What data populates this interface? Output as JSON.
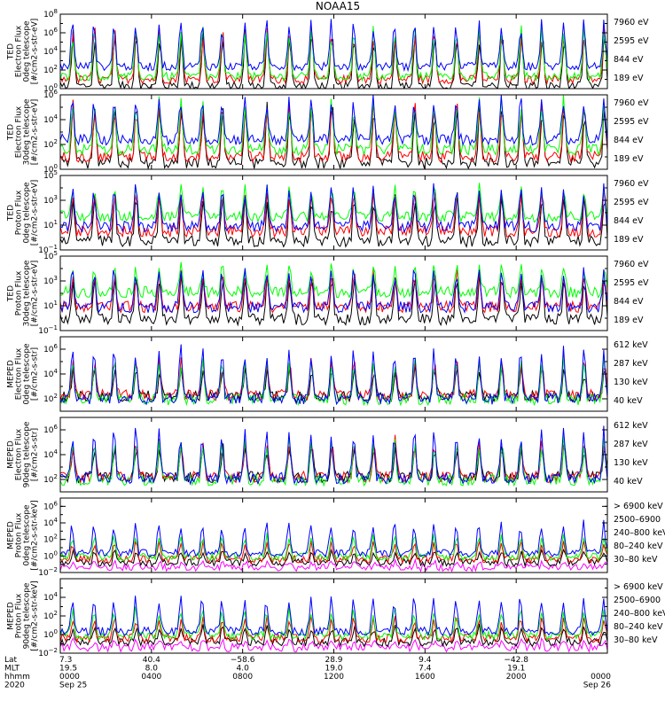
{
  "chart_data": {
    "type": "line",
    "title": "NOAA15",
    "x": {
      "rows": [
        {
          "label": "Lat",
          "values": [
            "7.3",
            "40.4",
            "−58.6",
            "28.9",
            "9.4",
            "−42.8",
            ""
          ]
        },
        {
          "label": "MLT",
          "values": [
            "19.5",
            "8.0",
            "4.0",
            "19.0",
            "7.4",
            "19.1",
            ""
          ]
        },
        {
          "label": "hhmm",
          "values": [
            "0000",
            "0400",
            "0800",
            "1200",
            "1600",
            "2000",
            "0000"
          ]
        },
        {
          "label": "2020",
          "values": [
            "Sep 25",
            "",
            "",
            "",
            "",
            "",
            "Sep 26"
          ]
        }
      ],
      "tick_hours": [
        0,
        4,
        8,
        12,
        16,
        20,
        24
      ],
      "range_hours": [
        0,
        24
      ]
    },
    "panels": [
      {
        "ylabel": [
          "TED",
          "Electron Flux",
          "0deg telescope",
          "[#/cm2-s-str-eV]"
        ],
        "ylim_log10": [
          0,
          8
        ],
        "major_ticks": [
          0,
          2,
          4,
          6,
          8
        ],
        "series": [
          {
            "name": "7960 eV",
            "color": "#000000",
            "base_log": 0.3,
            "amp": 6.3
          },
          {
            "name": "2595 eV",
            "color": "#ff0000",
            "base_log": 1.0,
            "amp": 6.0
          },
          {
            "name": "844 eV",
            "color": "#00ff00",
            "base_log": 1.3,
            "amp": 5.8
          },
          {
            "name": "189 eV",
            "color": "#0000ff",
            "base_log": 2.4,
            "amp": 5.3
          }
        ]
      },
      {
        "ylabel": [
          "TED",
          "Electron Flux",
          "30deg telescope",
          "[#/cm2-s-str-eV]"
        ],
        "ylim_log10": [
          0,
          6
        ],
        "major_ticks": [
          0,
          2,
          4,
          6
        ],
        "series": [
          {
            "name": "7960 eV",
            "color": "#000000",
            "base_log": 0.5,
            "amp": 5.2
          },
          {
            "name": "2595 eV",
            "color": "#ff0000",
            "base_log": 1.0,
            "amp": 4.8
          },
          {
            "name": "844 eV",
            "color": "#00ff00",
            "base_log": 1.6,
            "amp": 4.4
          },
          {
            "name": "189 eV",
            "color": "#0000ff",
            "base_log": 2.4,
            "amp": 3.7
          }
        ]
      },
      {
        "ylabel": [
          "TED",
          "Proton Flux",
          "0deg telescope",
          "[#/cm2-s-str-eV]"
        ],
        "ylim_log10": [
          -1,
          5
        ],
        "major_ticks": [
          -1,
          1,
          3,
          5
        ],
        "series": [
          {
            "name": "7960 eV",
            "color": "#000000",
            "base_log": -0.3,
            "amp": 4.2
          },
          {
            "name": "2595 eV",
            "color": "#ff0000",
            "base_log": 0.5,
            "amp": 3.6
          },
          {
            "name": "844 eV",
            "color": "#00ff00",
            "base_log": 1.7,
            "amp": 2.8
          },
          {
            "name": "189 eV",
            "color": "#0000ff",
            "base_log": 0.9,
            "amp": 3.6
          }
        ]
      },
      {
        "ylabel": [
          "TED",
          "Proton Flux",
          "30deg telescope",
          "[#/cm2-s-str-eV]"
        ],
        "ylim_log10": [
          -1,
          5
        ],
        "major_ticks": [
          -1,
          1,
          3,
          5
        ],
        "series": [
          {
            "name": "7960 eV",
            "color": "#000000",
            "base_log": -0.1,
            "amp": 4.0
          },
          {
            "name": "2595 eV",
            "color": "#ff0000",
            "base_log": 0.9,
            "amp": 3.1
          },
          {
            "name": "844 eV",
            "color": "#00ff00",
            "base_log": 2.1,
            "amp": 2.4
          },
          {
            "name": "189 eV",
            "color": "#0000ff",
            "base_log": 0.9,
            "amp": 3.4
          }
        ]
      },
      {
        "ylabel": [
          "MEPED",
          "Electron Flux",
          "0deg telescope",
          "[#/cm2-s-str]"
        ],
        "ylim_log10": [
          1,
          7
        ],
        "major_ticks": [
          2,
          4,
          6
        ],
        "series": [
          {
            "name": "612 keV",
            "color": "#000000",
            "base_log": 2.2,
            "amp": 2.6
          },
          {
            "name": "287 keV",
            "color": "#ff0000",
            "base_log": 2.3,
            "amp": 3.2
          },
          {
            "name": "130 keV",
            "color": "#00ff00",
            "base_log": 1.95,
            "amp": 3.6
          },
          {
            "name": "40 keV",
            "color": "#0000ff",
            "base_log": 2.0,
            "amp": 4.5
          }
        ]
      },
      {
        "ylabel": [
          "MEPED",
          "Electron Flux",
          "90deg telescope",
          "[#/cm2-s-str]"
        ],
        "ylim_log10": [
          1,
          7
        ],
        "major_ticks": [
          2,
          4,
          6
        ],
        "series": [
          {
            "name": "612 keV",
            "color": "#000000",
            "base_log": 2.2,
            "amp": 2.8
          },
          {
            "name": "287 keV",
            "color": "#ff0000",
            "base_log": 2.2,
            "amp": 3.2
          },
          {
            "name": "130 keV",
            "color": "#00ff00",
            "base_log": 1.95,
            "amp": 3.5
          },
          {
            "name": "40 keV",
            "color": "#0000ff",
            "base_log": 2.1,
            "amp": 4.3
          }
        ]
      },
      {
        "ylabel": [
          "MEPED",
          "Proton Flux",
          "0deg telescope",
          "[#/cm2-s-str-keV]"
        ],
        "ylim_log10": [
          -2,
          7
        ],
        "major_ticks": [
          -2,
          0,
          2,
          4,
          6
        ],
        "series": [
          {
            "name": "> 6900 keV",
            "color": "#ff00ff",
            "base_log": -1.4,
            "amp": 0.8
          },
          {
            "name": "2500–6900",
            "color": "#000000",
            "base_log": -0.8,
            "amp": 1.6
          },
          {
            "name": "240–800 keV",
            "color": "#ff0000",
            "base_log": -0.4,
            "amp": 2.4
          },
          {
            "name": "80–240 keV",
            "color": "#00ff00",
            "base_log": -0.1,
            "amp": 3.0
          },
          {
            "name": "30–80 keV",
            "color": "#0000ff",
            "base_log": 0.35,
            "amp": 4.2
          }
        ]
      },
      {
        "ylabel": [
          "MEPED",
          "Proton Flux",
          "90deg telescope",
          "[#/cm2-s-str-keV]"
        ],
        "ylim_log10": [
          -2,
          6
        ],
        "major_ticks": [
          -2,
          0,
          2,
          4
        ],
        "series": [
          {
            "name": "> 6900 keV",
            "color": "#ff00ff",
            "base_log": -1.4,
            "amp": 0.9
          },
          {
            "name": "2500–6900",
            "color": "#000000",
            "base_log": -0.8,
            "amp": 1.8
          },
          {
            "name": "240–800 keV",
            "color": "#ff0000",
            "base_log": -0.4,
            "amp": 2.5
          },
          {
            "name": "80–240 keV",
            "color": "#00ff00",
            "base_log": -0.1,
            "amp": 3.2
          },
          {
            "name": "30–80 keV",
            "color": "#0000ff",
            "base_log": 0.35,
            "amp": 4.1
          }
        ]
      }
    ]
  }
}
